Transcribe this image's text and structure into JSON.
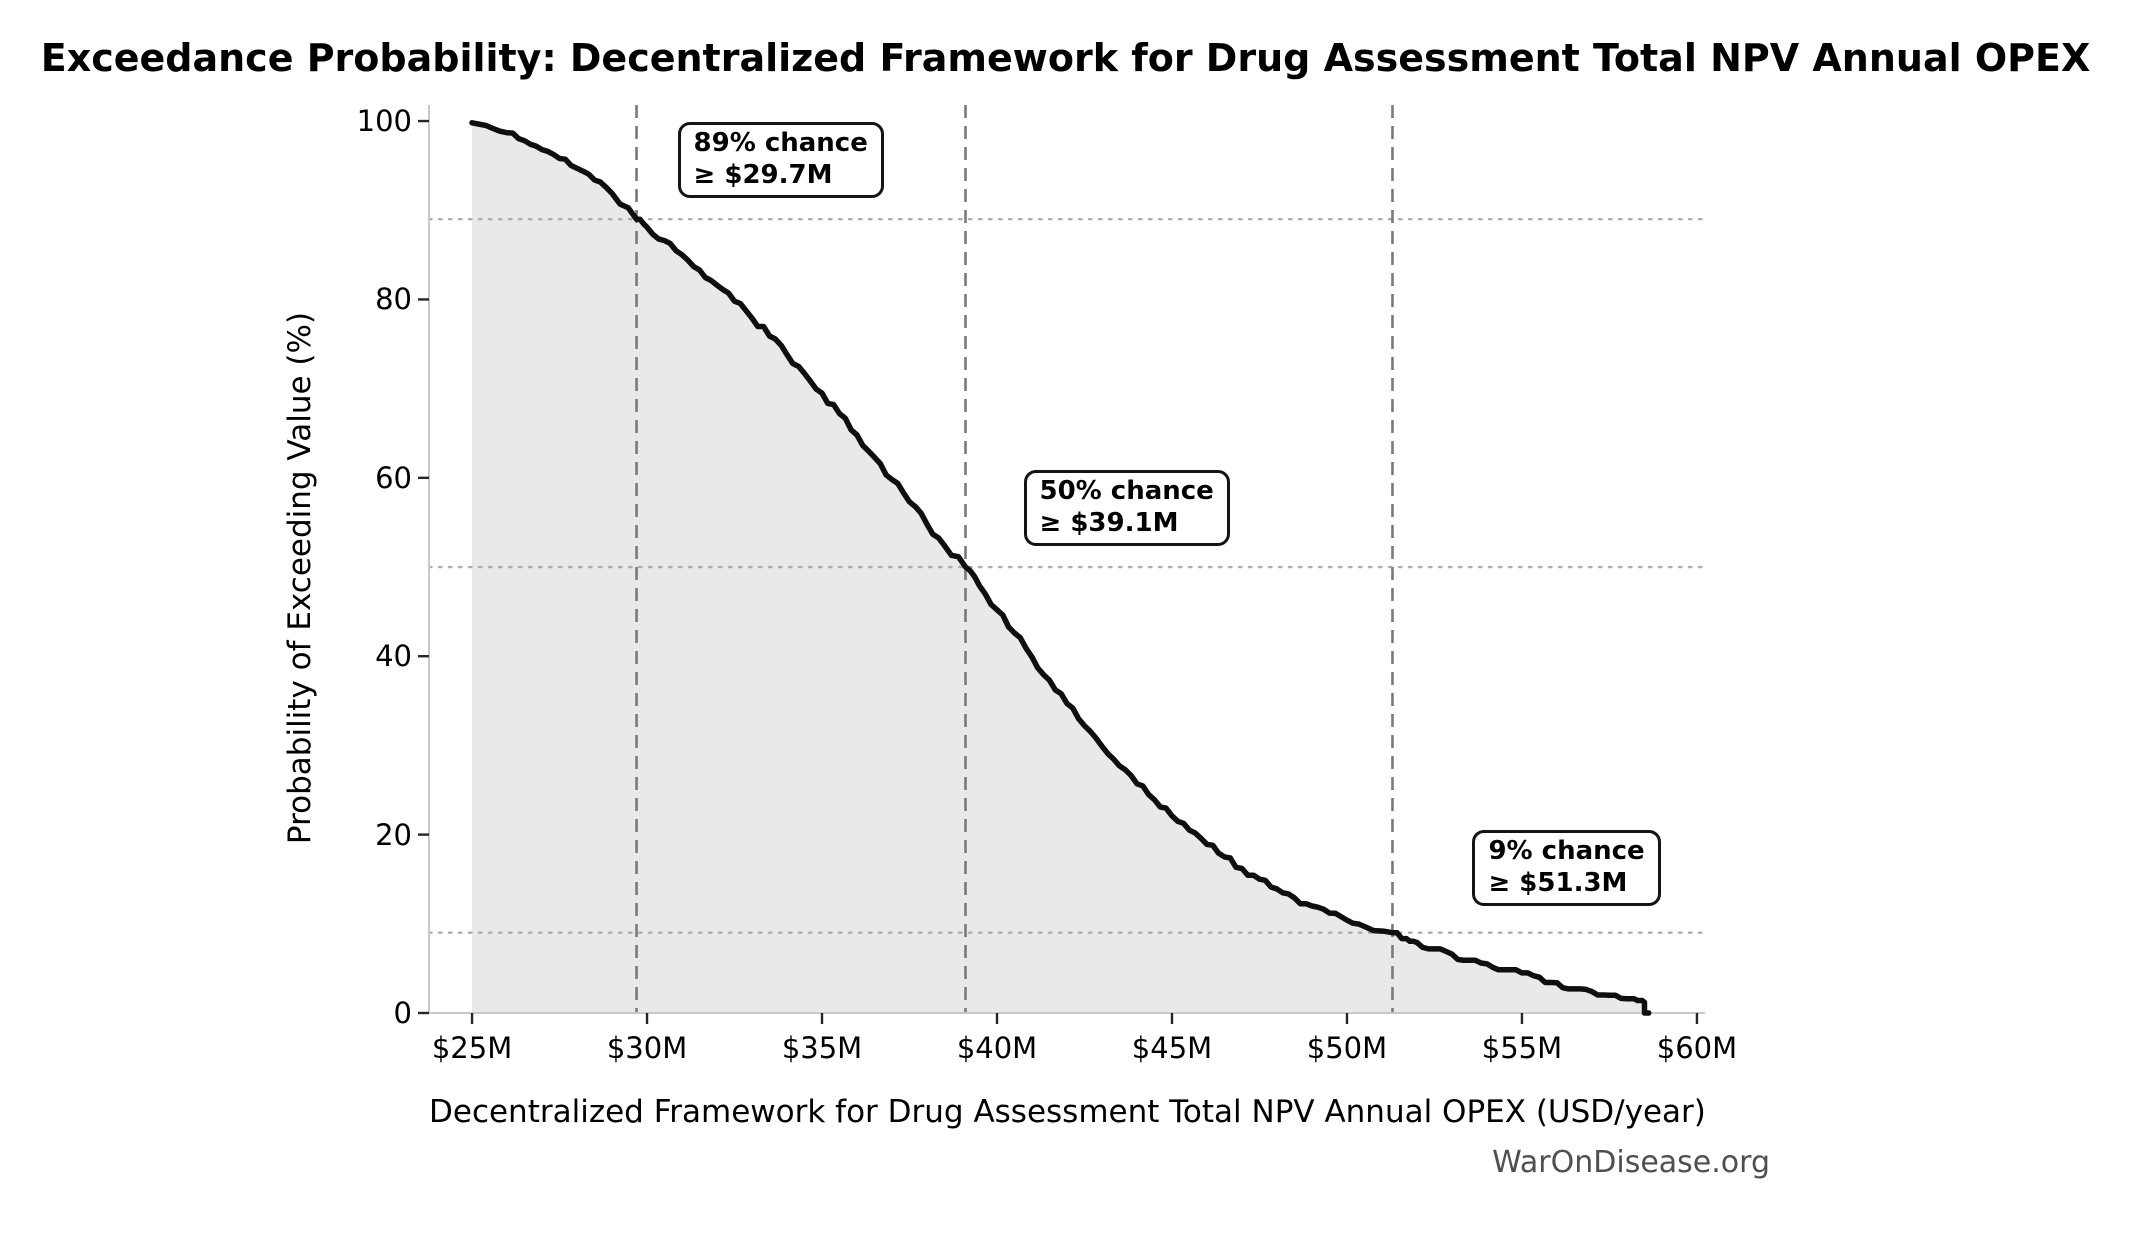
{
  "figure": {
    "title": "Exceedance Probability: Decentralized Framework for Drug Assessment Total NPV Annual OPEX",
    "watermark": "WarOnDisease.org"
  },
  "chart_data": {
    "type": "area",
    "subtype": "exceedance-probability-curve",
    "title": "Exceedance Probability: Decentralized Framework for Drug Assessment Total NPV Annual OPEX",
    "xlabel": "Decentralized Framework for Drug Assessment Total NPV Annual OPEX (USD/year)",
    "ylabel": "Probability of Exceeding Value (%)",
    "xlim": [
      23.77,
      60.23
    ],
    "ylim": [
      0,
      101.8
    ],
    "grid": "threshold guides only",
    "legend": "none",
    "x_ticks": [
      {
        "value": 25,
        "label": "$25M"
      },
      {
        "value": 30,
        "label": "$30M"
      },
      {
        "value": 35,
        "label": "$35M"
      },
      {
        "value": 40,
        "label": "$40M"
      },
      {
        "value": 45,
        "label": "$45M"
      },
      {
        "value": 50,
        "label": "$50M"
      },
      {
        "value": 55,
        "label": "$55M"
      },
      {
        "value": 60,
        "label": "$60M"
      }
    ],
    "y_ticks": [
      {
        "value": 0,
        "label": "0"
      },
      {
        "value": 20,
        "label": "20"
      },
      {
        "value": 40,
        "label": "40"
      },
      {
        "value": 60,
        "label": "60"
      },
      {
        "value": 80,
        "label": "80"
      },
      {
        "value": 100,
        "label": "100"
      }
    ],
    "annotations": [
      {
        "percent": 89,
        "value_musd": 29.7,
        "line1": "89% chance",
        "line2": "≥ $29.7M"
      },
      {
        "percent": 50,
        "value_musd": 39.1,
        "line1": "50% chance",
        "line2": "≥ $39.1M"
      },
      {
        "percent": 9,
        "value_musd": 51.3,
        "line1": "9% chance",
        "line2": "≥ $51.3M"
      }
    ],
    "series": [
      {
        "name": "exceedance curve",
        "points": [
          [
            25.0,
            99.8
          ],
          [
            25.4,
            99.5
          ],
          [
            26.0,
            98.7
          ],
          [
            26.5,
            97.8
          ],
          [
            27.0,
            96.8
          ],
          [
            27.5,
            95.8
          ],
          [
            28.0,
            94.7
          ],
          [
            28.5,
            93.4
          ],
          [
            29.0,
            91.9
          ],
          [
            29.7,
            89.0
          ],
          [
            30.0,
            88.1
          ],
          [
            30.5,
            86.6
          ],
          [
            31.0,
            85.0
          ],
          [
            31.5,
            83.3
          ],
          [
            32.0,
            81.6
          ],
          [
            32.5,
            79.8
          ],
          [
            33.0,
            77.9
          ],
          [
            33.5,
            75.9
          ],
          [
            34.0,
            73.8
          ],
          [
            34.5,
            71.7
          ],
          [
            35.0,
            69.5
          ],
          [
            35.5,
            67.2
          ],
          [
            36.0,
            64.8
          ],
          [
            36.5,
            62.3
          ],
          [
            37.0,
            59.8
          ],
          [
            37.5,
            57.3
          ],
          [
            38.0,
            54.8
          ],
          [
            38.5,
            52.4
          ],
          [
            39.1,
            50.0
          ],
          [
            39.5,
            47.9
          ],
          [
            40.0,
            45.2
          ],
          [
            40.5,
            42.6
          ],
          [
            41.0,
            39.9
          ],
          [
            41.5,
            37.3
          ],
          [
            42.0,
            34.7
          ],
          [
            42.5,
            32.2
          ],
          [
            43.0,
            29.9
          ],
          [
            43.5,
            27.7
          ],
          [
            44.0,
            25.7
          ],
          [
            44.5,
            23.9
          ],
          [
            45.0,
            22.1
          ],
          [
            45.5,
            20.5
          ],
          [
            46.0,
            18.9
          ],
          [
            46.5,
            17.5
          ],
          [
            47.0,
            16.2
          ],
          [
            47.5,
            15.0
          ],
          [
            48.0,
            13.9
          ],
          [
            48.5,
            12.9
          ],
          [
            49.0,
            12.0
          ],
          [
            49.5,
            11.2
          ],
          [
            50.0,
            10.4
          ],
          [
            50.5,
            9.7
          ],
          [
            51.3,
            9.0
          ],
          [
            51.7,
            8.4
          ],
          [
            52.0,
            7.9
          ],
          [
            52.5,
            7.2
          ],
          [
            53.0,
            6.6
          ],
          [
            53.5,
            6.0
          ],
          [
            54.0,
            5.5
          ],
          [
            54.5,
            5.0
          ],
          [
            55.0,
            4.5
          ],
          [
            55.5,
            4.0
          ],
          [
            56.0,
            3.4
          ],
          [
            56.5,
            2.9
          ],
          [
            57.0,
            2.4
          ],
          [
            57.5,
            2.0
          ],
          [
            58.0,
            1.6
          ],
          [
            58.3,
            1.4
          ],
          [
            58.5,
            1.2
          ],
          [
            58.5,
            0.0
          ],
          [
            58.62,
            0.0
          ]
        ]
      }
    ],
    "colors": {
      "curve": "#0f0f0f",
      "area_fill": "#e9e9e9",
      "dashed_guide": "#7a7a7a",
      "dotted_guide": "#adadad",
      "spine": "#c9c9c9",
      "tick_mark": "#262626",
      "text": "#000000",
      "watermark": "#4f4f4f",
      "background": "#ffffff"
    }
  }
}
